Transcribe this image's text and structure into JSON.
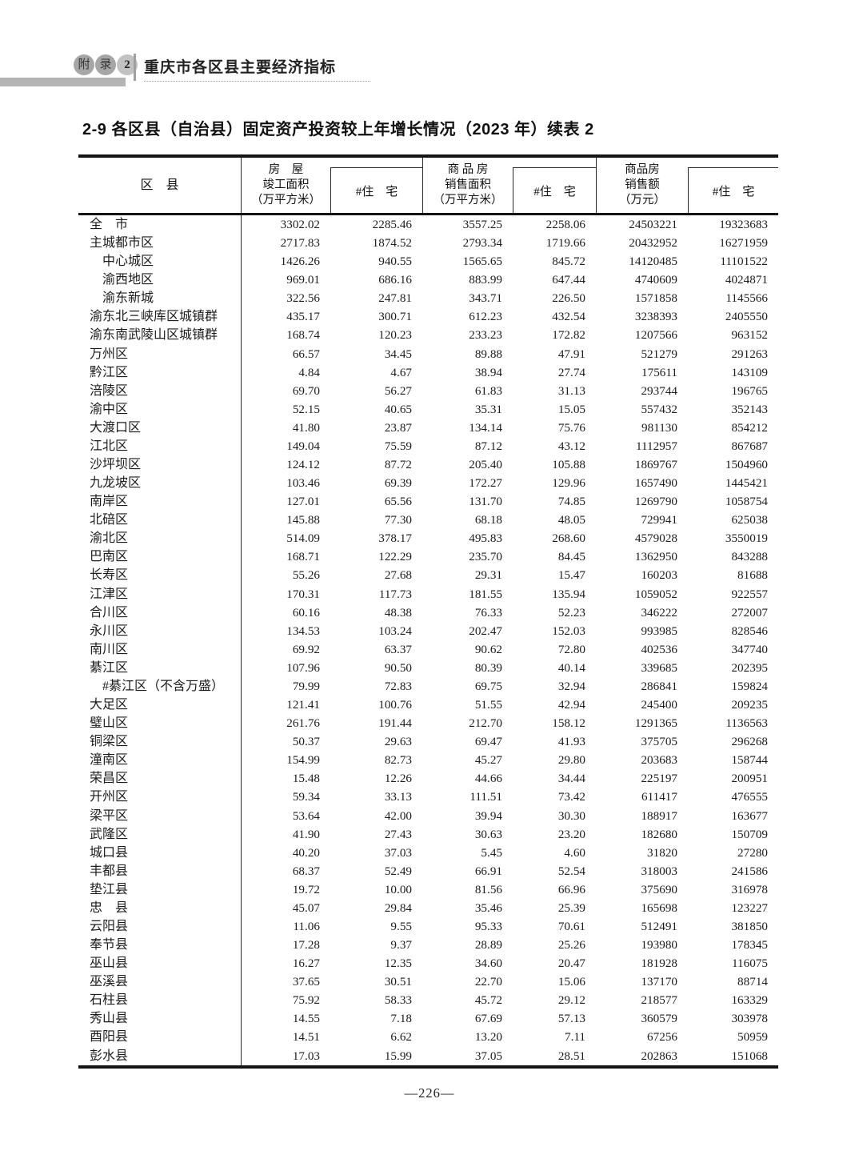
{
  "page": {
    "appendix_badge": [
      "附",
      "录",
      "2"
    ],
    "appendix_title": "重庆市各区县主要经济指标",
    "table_title": "2-9  各区县（自治县）固定资产投资较上年增长情况（2023 年）续表 2",
    "page_number": "—226—"
  },
  "colors": {
    "running_head_gray": "#b4b4b4",
    "table_line": "#141414",
    "text": "#1c1c1c"
  },
  "table": {
    "headers": {
      "region": "区　县",
      "c1": [
        "房　屋",
        "竣工面积",
        "（万平方米）"
      ],
      "c1_sub": "#住　宅",
      "c2": [
        "商 品 房",
        "销售面积",
        "（万平方米）"
      ],
      "c2_sub": "#住　宅",
      "c3": [
        "商品房",
        "销售额",
        "（万元）"
      ],
      "c3_sub": "#住　宅"
    },
    "rows": [
      {
        "name": "全　市",
        "indent": 0,
        "v": [
          "3302.02",
          "2285.46",
          "3557.25",
          "2258.06",
          "24503221",
          "19323683"
        ]
      },
      {
        "name": "主城都市区",
        "indent": 0,
        "v": [
          "2717.83",
          "1874.52",
          "2793.34",
          "1719.66",
          "20432952",
          "16271959"
        ]
      },
      {
        "name": "中心城区",
        "indent": 1,
        "v": [
          "1426.26",
          "940.55",
          "1565.65",
          "845.72",
          "14120485",
          "11101522"
        ]
      },
      {
        "name": "渝西地区",
        "indent": 1,
        "v": [
          "969.01",
          "686.16",
          "883.99",
          "647.44",
          "4740609",
          "4024871"
        ]
      },
      {
        "name": "渝东新城",
        "indent": 1,
        "v": [
          "322.56",
          "247.81",
          "343.71",
          "226.50",
          "1571858",
          "1145566"
        ]
      },
      {
        "name": "渝东北三峡库区城镇群",
        "indent": 0,
        "v": [
          "435.17",
          "300.71",
          "612.23",
          "432.54",
          "3238393",
          "2405550"
        ]
      },
      {
        "name": "渝东南武陵山区城镇群",
        "indent": 0,
        "v": [
          "168.74",
          "120.23",
          "233.23",
          "172.82",
          "1207566",
          "963152"
        ]
      },
      {
        "name": "万州区",
        "indent": 0,
        "v": [
          "66.57",
          "34.45",
          "89.88",
          "47.91",
          "521279",
          "291263"
        ]
      },
      {
        "name": "黔江区",
        "indent": 0,
        "v": [
          "4.84",
          "4.67",
          "38.94",
          "27.74",
          "175611",
          "143109"
        ]
      },
      {
        "name": "涪陵区",
        "indent": 0,
        "v": [
          "69.70",
          "56.27",
          "61.83",
          "31.13",
          "293744",
          "196765"
        ]
      },
      {
        "name": "渝中区",
        "indent": 0,
        "v": [
          "52.15",
          "40.65",
          "35.31",
          "15.05",
          "557432",
          "352143"
        ]
      },
      {
        "name": "大渡口区",
        "indent": 0,
        "v": [
          "41.80",
          "23.87",
          "134.14",
          "75.76",
          "981130",
          "854212"
        ]
      },
      {
        "name": "江北区",
        "indent": 0,
        "v": [
          "149.04",
          "75.59",
          "87.12",
          "43.12",
          "1112957",
          "867687"
        ]
      },
      {
        "name": "沙坪坝区",
        "indent": 0,
        "v": [
          "124.12",
          "87.72",
          "205.40",
          "105.88",
          "1869767",
          "1504960"
        ]
      },
      {
        "name": "九龙坡区",
        "indent": 0,
        "v": [
          "103.46",
          "69.39",
          "172.27",
          "129.96",
          "1657490",
          "1445421"
        ]
      },
      {
        "name": "南岸区",
        "indent": 0,
        "v": [
          "127.01",
          "65.56",
          "131.70",
          "74.85",
          "1269790",
          "1058754"
        ]
      },
      {
        "name": "北碚区",
        "indent": 0,
        "v": [
          "145.88",
          "77.30",
          "68.18",
          "48.05",
          "729941",
          "625038"
        ]
      },
      {
        "name": "渝北区",
        "indent": 0,
        "v": [
          "514.09",
          "378.17",
          "495.83",
          "268.60",
          "4579028",
          "3550019"
        ]
      },
      {
        "name": "巴南区",
        "indent": 0,
        "v": [
          "168.71",
          "122.29",
          "235.70",
          "84.45",
          "1362950",
          "843288"
        ]
      },
      {
        "name": "长寿区",
        "indent": 0,
        "v": [
          "55.26",
          "27.68",
          "29.31",
          "15.47",
          "160203",
          "81688"
        ]
      },
      {
        "name": "江津区",
        "indent": 0,
        "v": [
          "170.31",
          "117.73",
          "181.55",
          "135.94",
          "1059052",
          "922557"
        ]
      },
      {
        "name": "合川区",
        "indent": 0,
        "v": [
          "60.16",
          "48.38",
          "76.33",
          "52.23",
          "346222",
          "272007"
        ]
      },
      {
        "name": "永川区",
        "indent": 0,
        "v": [
          "134.53",
          "103.24",
          "202.47",
          "152.03",
          "993985",
          "828546"
        ]
      },
      {
        "name": "南川区",
        "indent": 0,
        "v": [
          "69.92",
          "63.37",
          "90.62",
          "72.80",
          "402536",
          "347740"
        ]
      },
      {
        "name": "綦江区",
        "indent": 0,
        "v": [
          "107.96",
          "90.50",
          "80.39",
          "40.14",
          "339685",
          "202395"
        ]
      },
      {
        "name": "#綦江区（不含万盛）",
        "indent": 1,
        "v": [
          "79.99",
          "72.83",
          "69.75",
          "32.94",
          "286841",
          "159824"
        ]
      },
      {
        "name": "大足区",
        "indent": 0,
        "v": [
          "121.41",
          "100.76",
          "51.55",
          "42.94",
          "245400",
          "209235"
        ]
      },
      {
        "name": "璧山区",
        "indent": 0,
        "v": [
          "261.76",
          "191.44",
          "212.70",
          "158.12",
          "1291365",
          "1136563"
        ]
      },
      {
        "name": "铜梁区",
        "indent": 0,
        "v": [
          "50.37",
          "29.63",
          "69.47",
          "41.93",
          "375705",
          "296268"
        ]
      },
      {
        "name": "潼南区",
        "indent": 0,
        "v": [
          "154.99",
          "82.73",
          "45.27",
          "29.80",
          "203683",
          "158744"
        ]
      },
      {
        "name": "荣昌区",
        "indent": 0,
        "v": [
          "15.48",
          "12.26",
          "44.66",
          "34.44",
          "225197",
          "200951"
        ]
      },
      {
        "name": "开州区",
        "indent": 0,
        "v": [
          "59.34",
          "33.13",
          "111.51",
          "73.42",
          "611417",
          "476555"
        ]
      },
      {
        "name": "梁平区",
        "indent": 0,
        "v": [
          "53.64",
          "42.00",
          "39.94",
          "30.30",
          "188917",
          "163677"
        ]
      },
      {
        "name": "武隆区",
        "indent": 0,
        "v": [
          "41.90",
          "27.43",
          "30.63",
          "23.20",
          "182680",
          "150709"
        ]
      },
      {
        "name": "城口县",
        "indent": 0,
        "v": [
          "40.20",
          "37.03",
          "5.45",
          "4.60",
          "31820",
          "27280"
        ]
      },
      {
        "name": "丰都县",
        "indent": 0,
        "v": [
          "68.37",
          "52.49",
          "66.91",
          "52.54",
          "318003",
          "241586"
        ]
      },
      {
        "name": "垫江县",
        "indent": 0,
        "v": [
          "19.72",
          "10.00",
          "81.56",
          "66.96",
          "375690",
          "316978"
        ]
      },
      {
        "name": "忠　县",
        "indent": 0,
        "v": [
          "45.07",
          "29.84",
          "35.46",
          "25.39",
          "165698",
          "123227"
        ]
      },
      {
        "name": "云阳县",
        "indent": 0,
        "v": [
          "11.06",
          "9.55",
          "95.33",
          "70.61",
          "512491",
          "381850"
        ]
      },
      {
        "name": "奉节县",
        "indent": 0,
        "v": [
          "17.28",
          "9.37",
          "28.89",
          "25.26",
          "193980",
          "178345"
        ]
      },
      {
        "name": "巫山县",
        "indent": 0,
        "v": [
          "16.27",
          "12.35",
          "34.60",
          "20.47",
          "181928",
          "116075"
        ]
      },
      {
        "name": "巫溪县",
        "indent": 0,
        "v": [
          "37.65",
          "30.51",
          "22.70",
          "15.06",
          "137170",
          "88714"
        ]
      },
      {
        "name": "石柱县",
        "indent": 0,
        "v": [
          "75.92",
          "58.33",
          "45.72",
          "29.12",
          "218577",
          "163329"
        ]
      },
      {
        "name": "秀山县",
        "indent": 0,
        "v": [
          "14.55",
          "7.18",
          "67.69",
          "57.13",
          "360579",
          "303978"
        ]
      },
      {
        "name": "酉阳县",
        "indent": 0,
        "v": [
          "14.51",
          "6.62",
          "13.20",
          "7.11",
          "67256",
          "50959"
        ]
      },
      {
        "name": "彭水县",
        "indent": 0,
        "v": [
          "17.03",
          "15.99",
          "37.05",
          "28.51",
          "202863",
          "151068"
        ]
      }
    ]
  }
}
